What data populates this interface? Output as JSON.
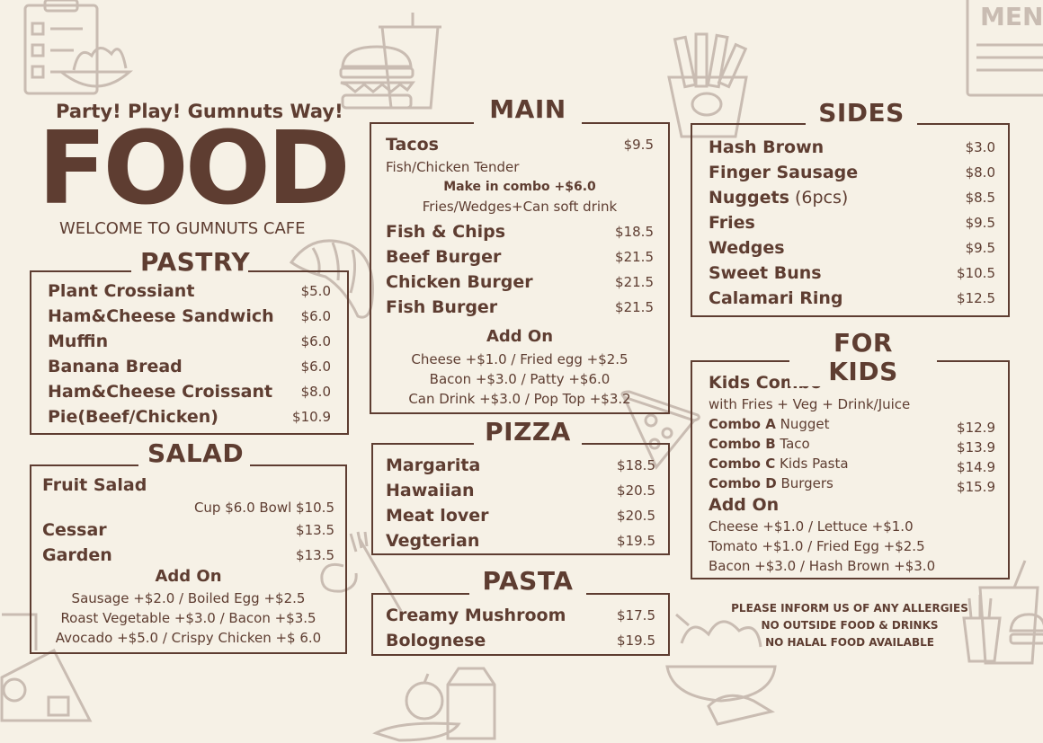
{
  "header": {
    "tagline": "Party! Play! Gumnuts Way!",
    "title": "FOOD",
    "welcome": "WELCOME TO GUMNUTS CAFE",
    "menu_sign": "MENU"
  },
  "pastry": {
    "title": "PASTRY",
    "items": [
      {
        "name": "Plant Crossiant",
        "price": "$5.0"
      },
      {
        "name": "Ham&Cheese Sandwich",
        "price": "$6.0"
      },
      {
        "name": "Muffin",
        "price": "$6.0"
      },
      {
        "name": "Banana Bread",
        "price": "$6.0"
      },
      {
        "name": "Ham&Cheese Croissant",
        "price": "$8.0"
      },
      {
        "name": "Pie(Beef/Chicken)",
        "price": "$10.9"
      }
    ]
  },
  "salad": {
    "title": "SALAD",
    "fruit_salad": "Fruit Salad",
    "fruit_salad_prices": "Cup $6.0 Bowl $10.5",
    "items": [
      {
        "name": "Cessar",
        "price": "$13.5"
      },
      {
        "name": "Garden",
        "price": "$13.5"
      }
    ],
    "addon_title": "Add On",
    "addons": [
      "Sausage +$2.0 / Boiled Egg +$2.5",
      "Roast Vegetable +$3.0 / Bacon +$3.5",
      "Avocado +$5.0 / Crispy Chicken +$ 6.0"
    ]
  },
  "main": {
    "title": "MAIN",
    "tacos": {
      "name": "Tacos",
      "price": "$9.5"
    },
    "tacos_desc": "Fish/Chicken Tender",
    "combo_line": "Make in combo +$6.0",
    "combo_desc": "Fries/Wedges+Can soft drink",
    "items": [
      {
        "name": "Fish & Chips",
        "price": "$18.5"
      },
      {
        "name": "Beef Burger",
        "price": "$21.5"
      },
      {
        "name": "Chicken Burger",
        "price": "$21.5"
      },
      {
        "name": "Fish Burger",
        "price": "$21.5"
      }
    ],
    "addon_title": "Add On",
    "addons": [
      "Cheese +$1.0 / Fried egg +$2.5",
      "Bacon +$3.0 / Patty +$6.0",
      "Can Drink +$3.0 / Pop Top +$3.2"
    ]
  },
  "pizza": {
    "title": "PIZZA",
    "items": [
      {
        "name": "Margarita",
        "price": "$18.5"
      },
      {
        "name": "Hawaiian",
        "price": "$20.5"
      },
      {
        "name": "Meat lover",
        "price": "$20.5"
      },
      {
        "name": "Vegterian",
        "price": "$19.5"
      }
    ]
  },
  "pasta": {
    "title": "PASTA",
    "items": [
      {
        "name": "Creamy Mushroom",
        "price": "$17.5"
      },
      {
        "name": "Bolognese",
        "price": "$19.5"
      }
    ]
  },
  "sides": {
    "title": "SIDES",
    "items": [
      {
        "name": "Hash Brown",
        "extra": "",
        "price": "$3.0"
      },
      {
        "name": "Finger Sausage",
        "extra": "",
        "price": "$8.0"
      },
      {
        "name": "Nuggets",
        "extra": " (6pcs)",
        "price": "$8.5"
      },
      {
        "name": "Fries",
        "extra": "",
        "price": "$9.5"
      },
      {
        "name": "Wedges",
        "extra": "",
        "price": "$9.5"
      },
      {
        "name": "Sweet Buns",
        "extra": "",
        "price": "$10.5"
      },
      {
        "name": "Calamari Ring",
        "extra": "",
        "price": "$12.5"
      }
    ]
  },
  "kids": {
    "title": "FOR KIDS",
    "combo_title": "Kids Combo",
    "combo_desc": "with Fries + Veg + Drink/Juice",
    "combos": [
      {
        "label": "Combo A",
        "desc": " Nugget",
        "price": "$12.9"
      },
      {
        "label": "Combo B",
        "desc": " Taco",
        "price": "$13.9"
      },
      {
        "label": "Combo C",
        "desc": " Kids Pasta",
        "price": "$14.9"
      },
      {
        "label": "Combo D",
        "desc": " Burgers",
        "price": "$15.9"
      }
    ],
    "addon_title": "Add On",
    "addons": [
      "Cheese +$1.0 / Lettuce +$1.0",
      "Tomato +$1.0 / Fried Egg +$2.5",
      "Bacon +$3.0 / Hash Brown +$3.0"
    ]
  },
  "notices": [
    "PLEASE INFORM US OF ANY ALLERGIES",
    "NO OUTSIDE FOOD & DRINKS",
    "NO HALAL FOOD AVAILABLE"
  ],
  "colors": {
    "background": "#f6f1e6",
    "brown": "#5e3d31",
    "deco": "#c9bcb2"
  }
}
